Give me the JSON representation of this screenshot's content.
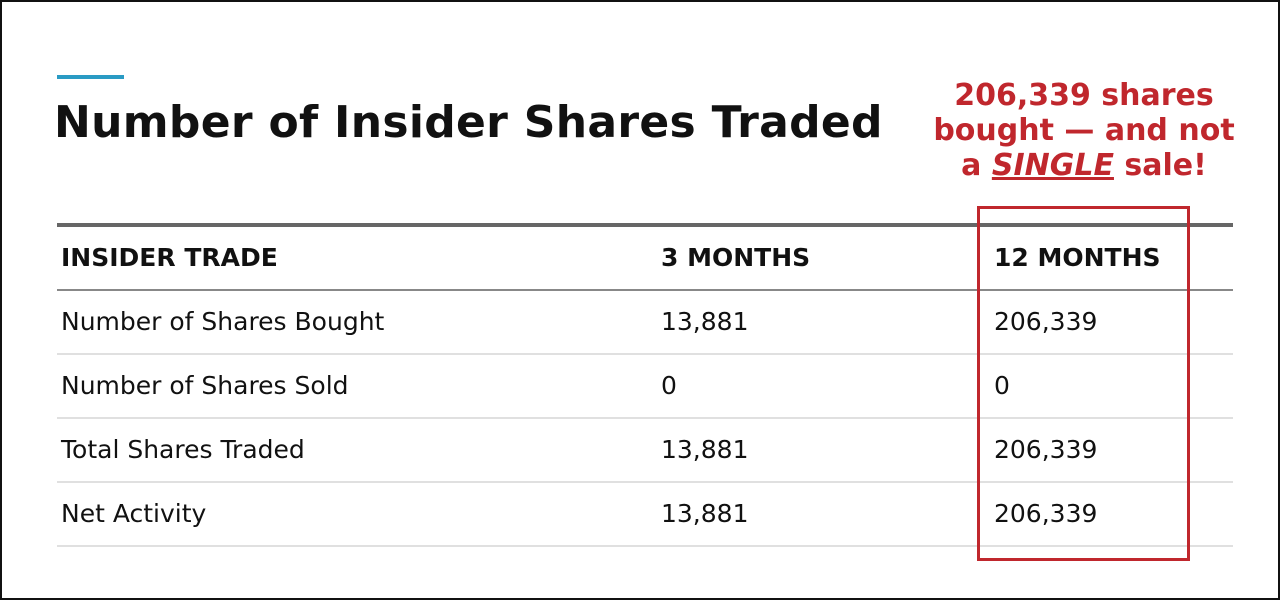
{
  "title": "Number of Insider Shares Traded",
  "annotation": {
    "lines": [
      "206,339 shares",
      "bought — and not"
    ],
    "last_line": [
      "a",
      "SINGLE",
      "sale!"
    ]
  },
  "table": {
    "header": [
      "INSIDER TRADE",
      "3 MONTHS",
      "12 MONTHS"
    ],
    "rows": [
      [
        "Number of Shares Bought",
        "13,881",
        "206,339"
      ],
      [
        "Number of Shares Sold",
        "0",
        "0"
      ],
      [
        "Total Shares Traded",
        "13,881",
        "206,339"
      ],
      [
        "Net Activity",
        "13,881",
        "206,339"
      ]
    ]
  }
}
